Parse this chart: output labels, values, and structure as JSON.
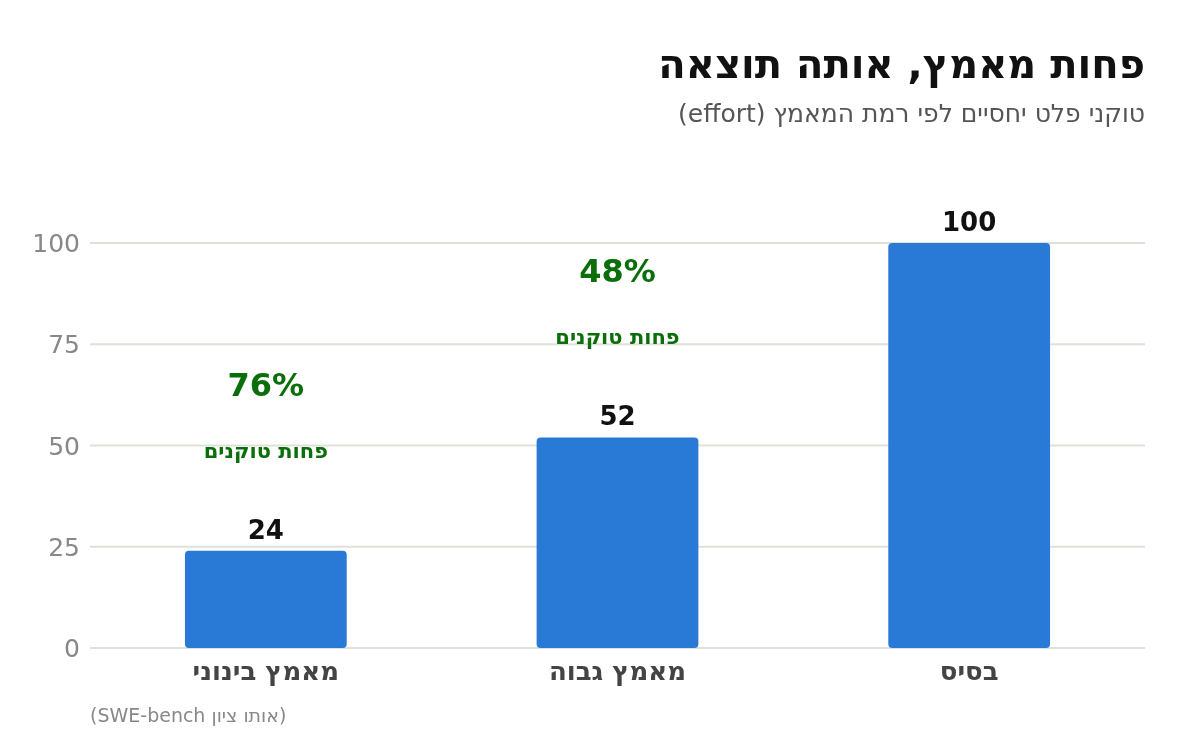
{
  "chart_data": {
    "type": "bar",
    "title": "פחות מאמץ, אותה תוצאה",
    "subtitle": "טוקני פלט יחסיים לפי רמת המאמץ (effort)",
    "categories": [
      "מאמץ בינוני",
      "מאמץ גבוה",
      "בסיס"
    ],
    "values": [
      24,
      52,
      100
    ],
    "color": "#2979d6",
    "ylim": [
      0,
      100
    ],
    "yticks": [
      0,
      25,
      50,
      75,
      100
    ],
    "grid": "y",
    "data_labels": true,
    "annotations": [
      "76%",
      "פחות טוקנים",
      "48%",
      "פחות טוקנים",
      "(אותו ציון SWE-bench)"
    ]
  }
}
